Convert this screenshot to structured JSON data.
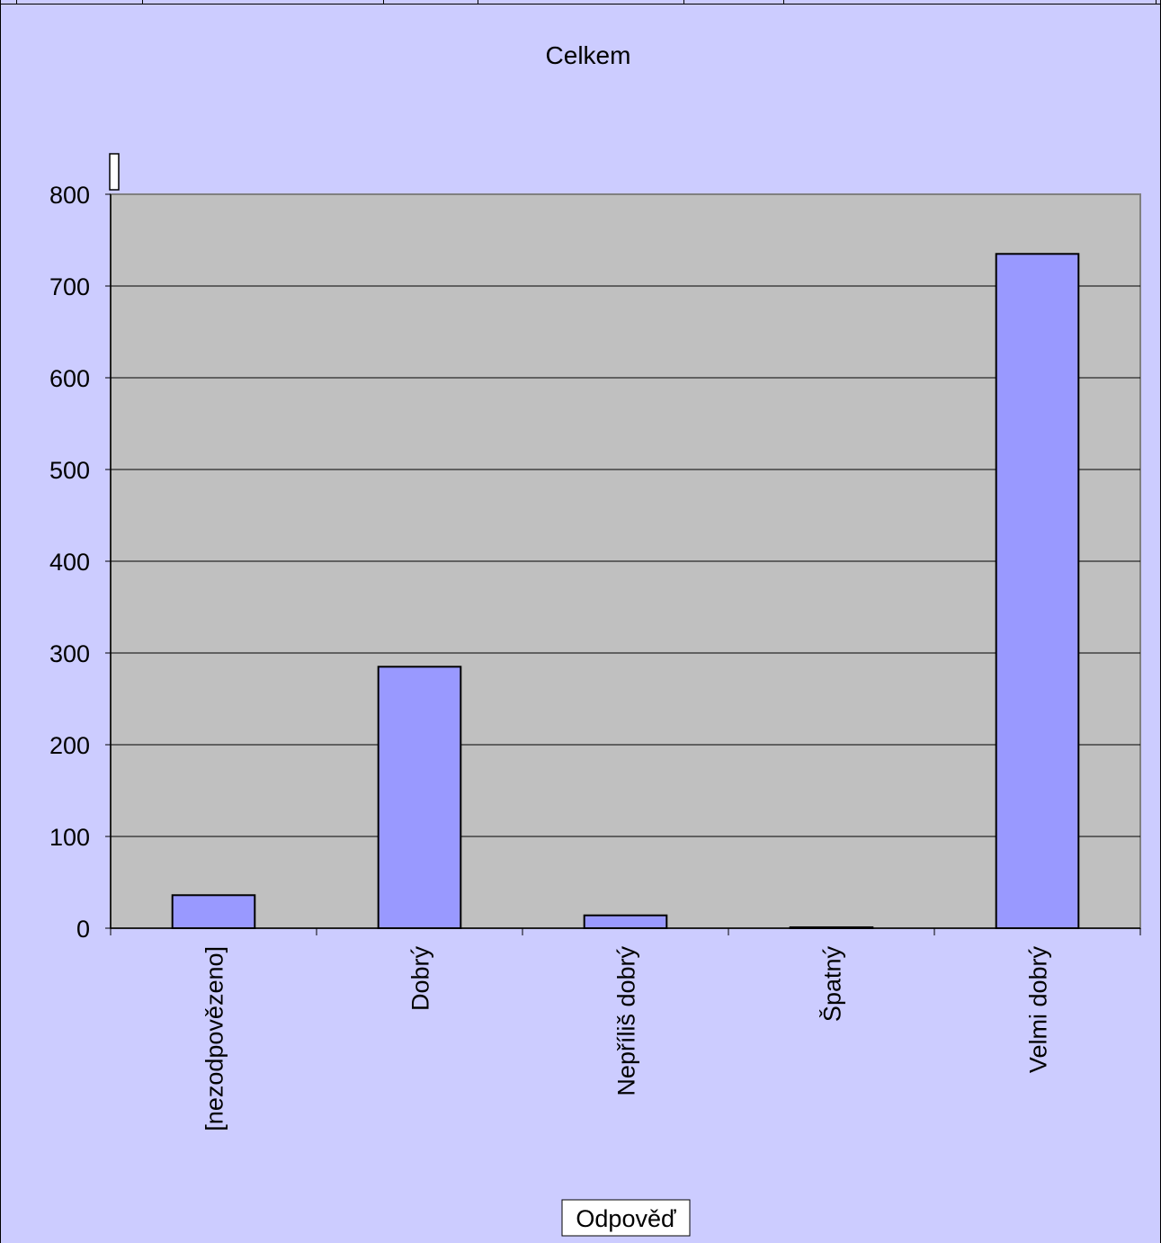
{
  "chart_data": {
    "type": "bar",
    "title": "Celkem",
    "xlabel": "Odpověď",
    "ylabel": "",
    "categories": [
      "[nezodpovězeno]",
      "Dobrý",
      "Nepříliš dobrý",
      "Špatný",
      "Velmi dobrý"
    ],
    "series": [
      {
        "values": [
          36,
          285,
          14,
          1,
          735
        ]
      }
    ],
    "ylim": [
      0,
      800
    ],
    "yticks": [
      0,
      100,
      200,
      300,
      400,
      500,
      600,
      700,
      800
    ],
    "grid": true,
    "legend": "none",
    "colors": {
      "page_background": "#ccccff",
      "plot_background": "#c0c0c0",
      "bar_fill": "#9999ff",
      "bar_stroke": "#000000",
      "plot_border": "#808080",
      "gridline": "#000000"
    }
  }
}
